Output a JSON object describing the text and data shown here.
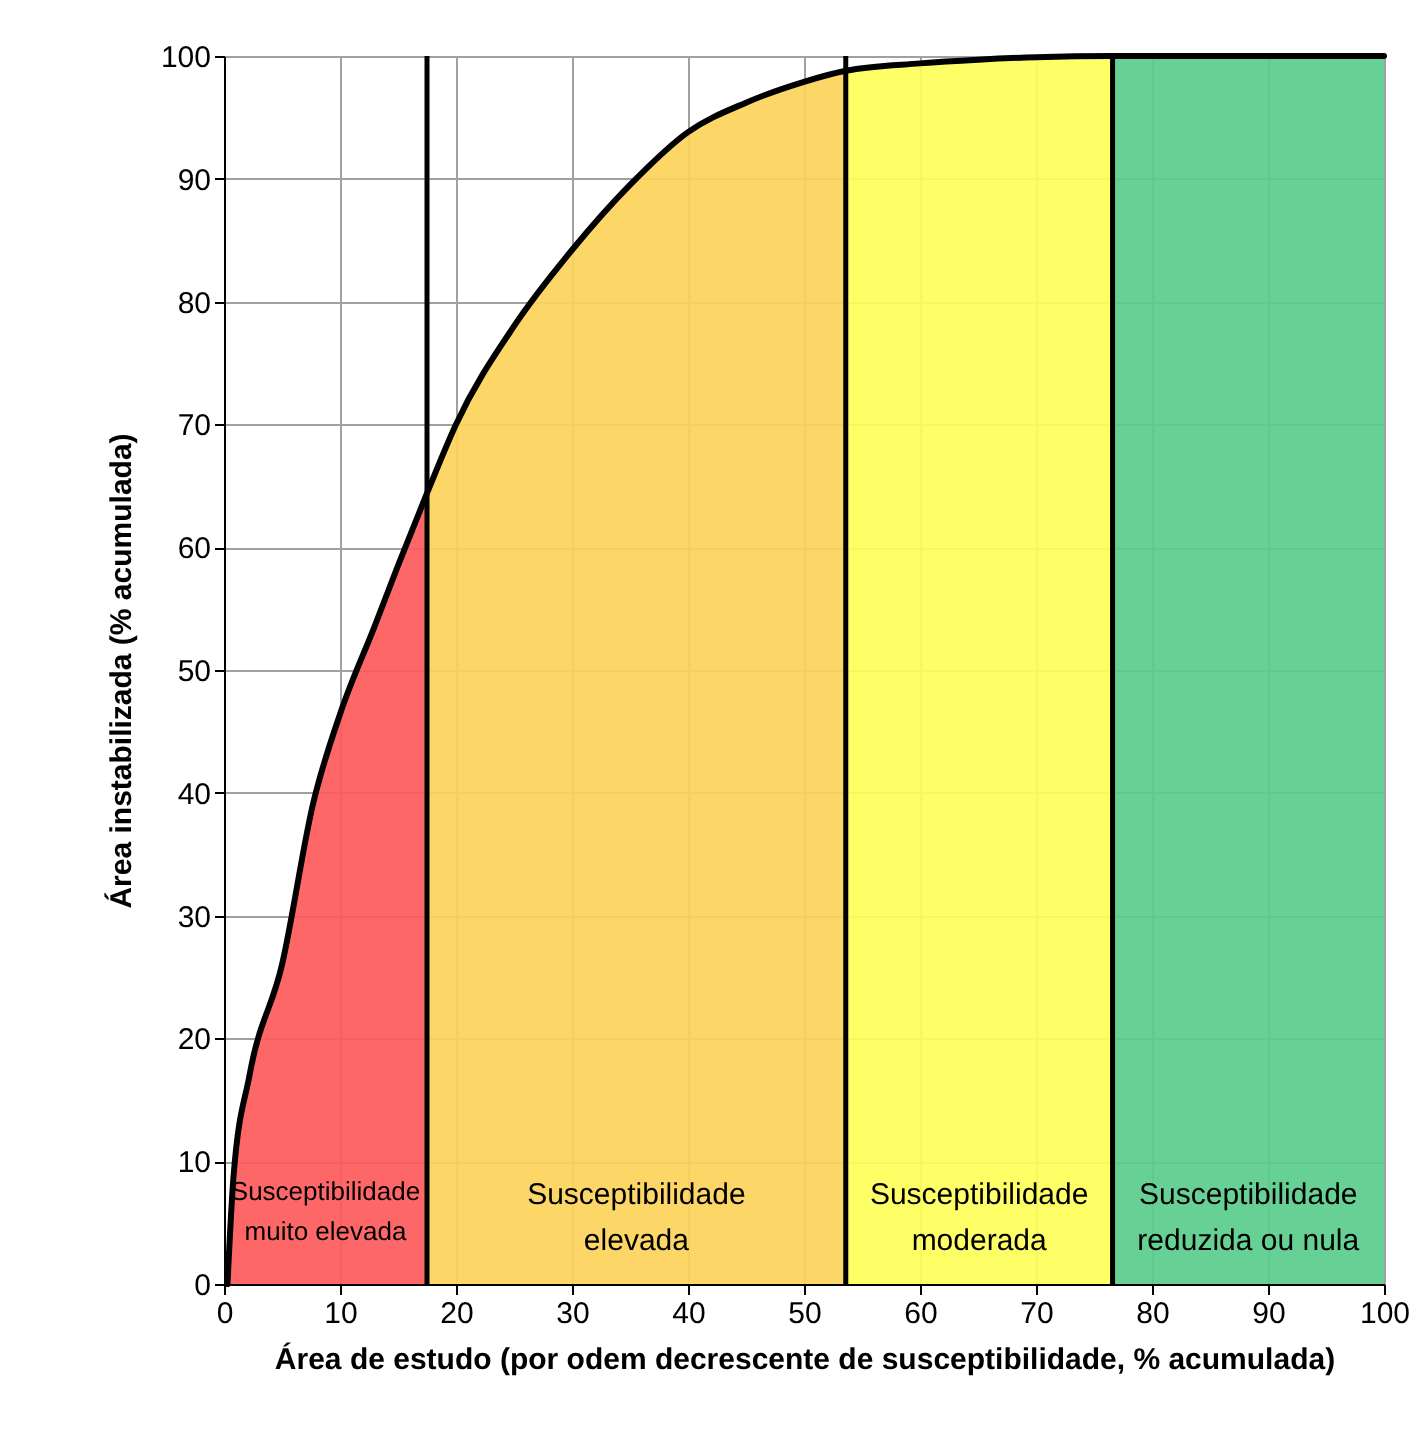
{
  "chart_data": {
    "type": "area",
    "xlabel": "Área de estudo (por odem decrescente de susceptibilidade, % acumulada)",
    "ylabel": "Área instabilizada (% acumulada)",
    "xlim": [
      0,
      100
    ],
    "ylim": [
      0,
      100
    ],
    "xticks": [
      0,
      10,
      20,
      30,
      40,
      50,
      60,
      70,
      80,
      90,
      100
    ],
    "yticks": [
      0,
      10,
      20,
      30,
      40,
      50,
      60,
      70,
      80,
      90,
      100
    ],
    "grid": true,
    "series": [
      {
        "color": "#fe5a5a",
        "x": [
          0.3,
          0.8,
          2.2,
          5,
          7.7,
          10,
          13,
          15,
          17.5
        ],
        "values": [
          0,
          8.5,
          17,
          26,
          39.2,
          46.4,
          53.6,
          58.5,
          64.4
        ]
      },
      {
        "color": "#fcd25a",
        "x": [
          17.5,
          20,
          25,
          30,
          35,
          40,
          45,
          50,
          53.6
        ],
        "values": [
          64.4,
          70,
          78,
          84.2,
          89.5,
          93.8,
          96.2,
          97.9,
          98.8
        ]
      },
      {
        "color": "#fefe5a",
        "x": [
          53.6,
          60,
          65,
          70,
          76.6
        ],
        "values": [
          98.8,
          99.4,
          99.7,
          99.9,
          100
        ]
      },
      {
        "color": "#5acc8c",
        "x": [
          76.6,
          100
        ],
        "values": [
          100,
          100
        ]
      },
      {
        "type": "line",
        "color": "#000000",
        "x": [
          0.3,
          0.8,
          2.2,
          5,
          7.7,
          10,
          13,
          15,
          17.5,
          20,
          25,
          30,
          35,
          40,
          45,
          50,
          53.6,
          60,
          65,
          70,
          76.6,
          100
        ],
        "values": [
          0,
          8.5,
          17,
          26,
          39.2,
          46.4,
          53.6,
          58.5,
          64.4,
          70,
          78,
          84.2,
          89.5,
          93.8,
          96.2,
          97.9,
          98.8,
          99.4,
          99.7,
          99.9,
          100,
          100
        ]
      }
    ],
    "ref_lines": [
      {
        "axis": "x",
        "value": 17.5,
        "color": "#000000"
      },
      {
        "axis": "x",
        "value": 53.6,
        "color": "#000000"
      },
      {
        "axis": "x",
        "value": 76.6,
        "color": "#000000"
      }
    ],
    "annotations": [
      "Susceptibilidade\nmuito elevada",
      "Susceptibilidade\nelevada",
      "Susceptibilidade\nmoderada",
      "Susceptibilidade\nreduzida ou nula"
    ]
  }
}
